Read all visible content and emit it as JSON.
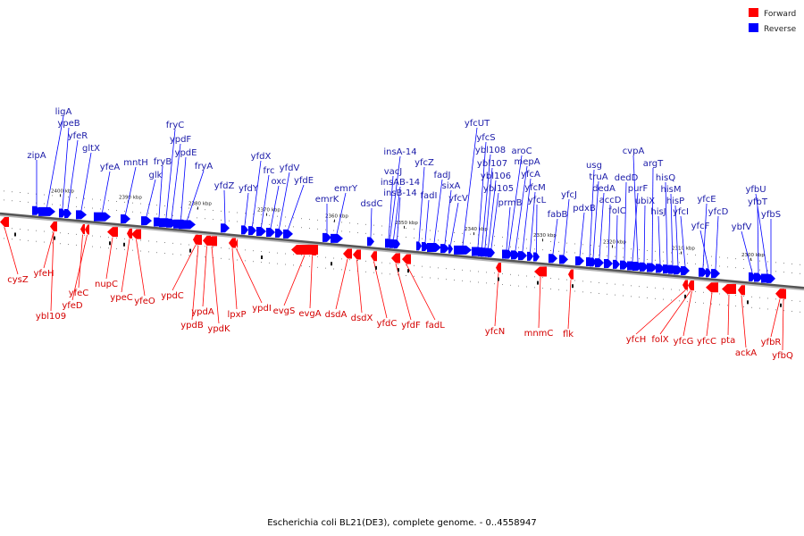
{
  "legend": {
    "forward": {
      "label": "Forward",
      "color": "#ff0000"
    },
    "reverse": {
      "label": "Reverse",
      "color": "#0000ff"
    }
  },
  "caption": "Escherichia coli BL21(DE3), complete genome. - 0..4558947",
  "scale_labels": [
    "2400 kbp",
    "2390 kbp",
    "2380 kbp",
    "2370 kbp",
    "2360 kbp",
    "2350 kbp",
    "2340 kbp",
    "2330 kbp",
    "2320 kbp",
    "2310 kbp",
    "2300 kbp"
  ],
  "reverse_genes": [
    "zipA",
    "ligA",
    "ypeB",
    "yfeR",
    "gltX",
    "yfeA",
    "mntH",
    "glk",
    "fryB",
    "fryC",
    "ypdF",
    "ypdE",
    "fryA",
    "yfdZ",
    "yfdY",
    "yfdX",
    "frc",
    "oxc",
    "yfdV",
    "yfdE",
    "emrK",
    "emrY",
    "dsdC",
    "insA-14",
    "vacJ",
    "insAB-14",
    "insB-14",
    "yfcZ",
    "fadI",
    "fadJ",
    "sixA",
    "yfcV",
    "yfcUT",
    "yfcS",
    "ybl108",
    "ybl107",
    "ybl106",
    "ybl105",
    "aroC",
    "mepA",
    "yfcA",
    "yfcM",
    "yfcL",
    "prmB",
    "fabB",
    "yfcJ",
    "pdxB",
    "usg",
    "truA",
    "dedA",
    "accD",
    "folC",
    "dedD",
    "purF",
    "cvpA",
    "ubiX",
    "argT",
    "hisJ",
    "hisQ",
    "hisM",
    "hisP",
    "yfcI",
    "yfcE",
    "yfcF",
    "yfcD",
    "ybfV",
    "yfbU",
    "yfbT",
    "yfbS"
  ],
  "forward_genes": [
    "cysZ",
    "yfeH",
    "ybl109",
    "yfeC",
    "yfeD",
    "nupC",
    "ypeC",
    "yfeO",
    "ypdC",
    "ypdB",
    "ypdA",
    "ypdK",
    "lpxP",
    "ypdI",
    "evgS",
    "evgA",
    "dsdA",
    "dsdX",
    "yfdC",
    "yfdF",
    "fadL",
    "yfcN",
    "mnmC",
    "flk",
    "yfcH",
    "folX",
    "yfcG",
    "yfcC",
    "pta",
    "ackA",
    "yfbR",
    "yfbQ"
  ]
}
